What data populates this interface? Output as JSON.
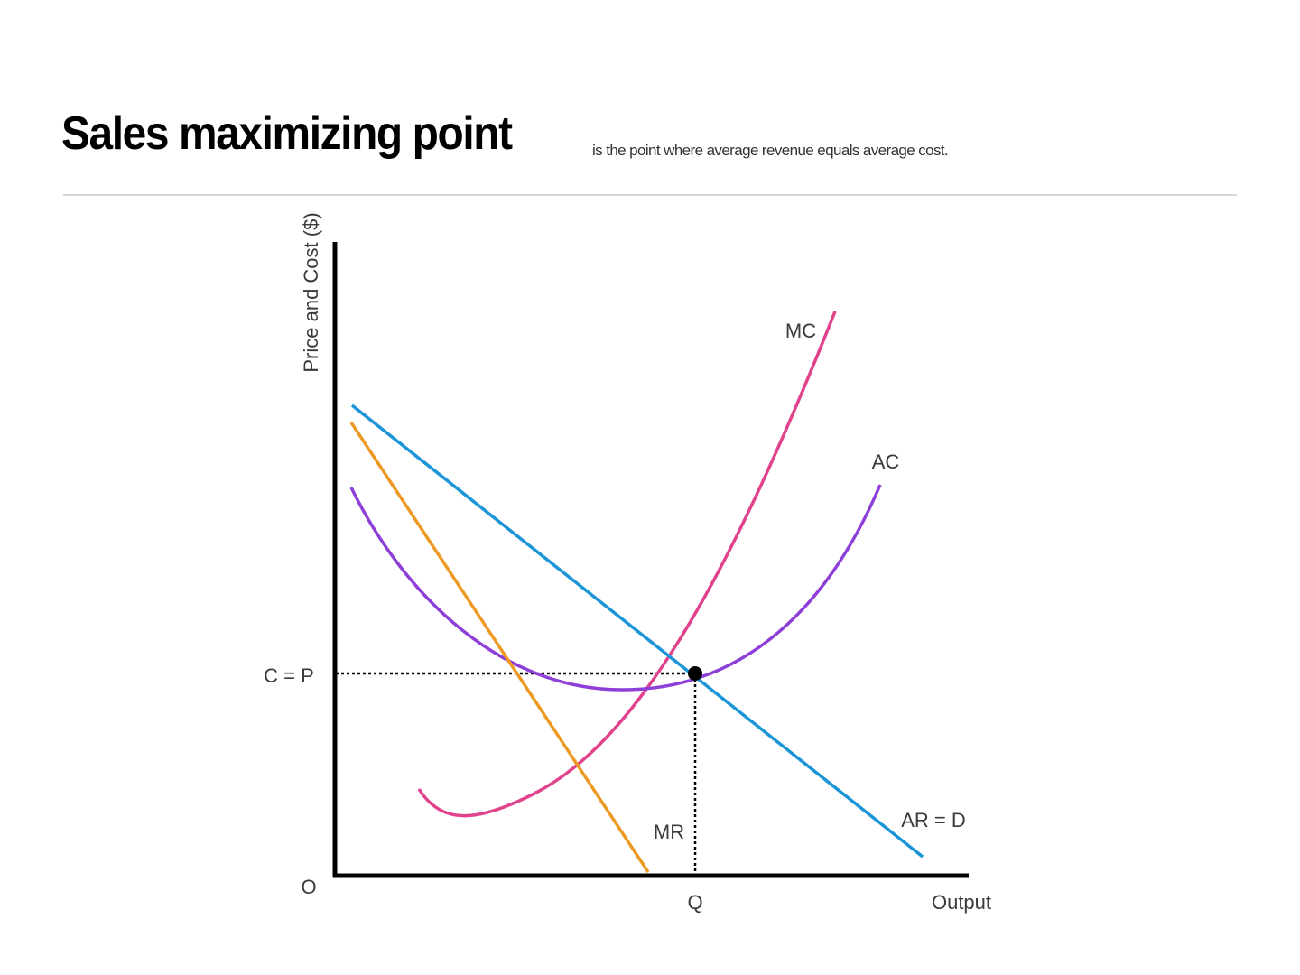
{
  "title": "Sales maximizing point",
  "subtitle": "is the point where average revenue equals average cost.",
  "axes": {
    "y_label": "Price and Cost ($)",
    "x_label": "Output",
    "origin_label": "O",
    "y_marker_label": "C = P",
    "x_marker_label": "Q"
  },
  "curves": {
    "mc": {
      "label": "MC",
      "color": "#e0428c"
    },
    "ac": {
      "label": "AC",
      "color": "#8e3fd8"
    },
    "ar": {
      "label": "AR = D",
      "color": "#1c95d8"
    },
    "mr": {
      "label": "MR",
      "color": "#ec9a23"
    }
  },
  "colors": {
    "axis": "#000000",
    "guide": "#000000",
    "point": "#000000",
    "rule": "#d6d6d6"
  }
}
